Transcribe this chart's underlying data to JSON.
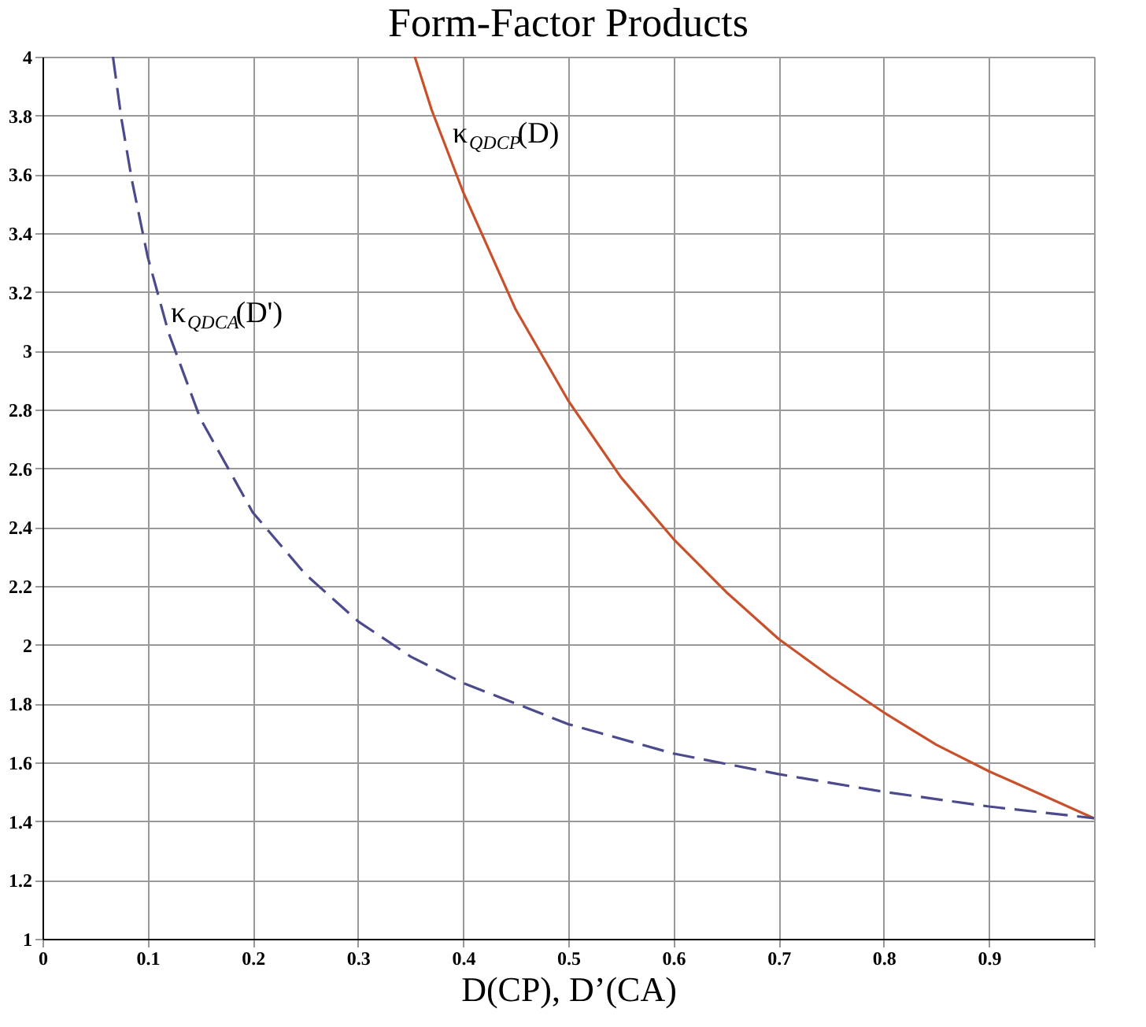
{
  "chart_data": {
    "type": "line",
    "title": "Form-Factor Products",
    "xlabel": "D(CP), D’(CA)",
    "xlim": [
      0,
      1
    ],
    "xticks": [
      0,
      0.1,
      0.2,
      0.3,
      0.4,
      0.5,
      0.6,
      0.7,
      0.8,
      0.9,
      {
        "value": 1,
        "label": null
      }
    ],
    "ylim": [
      1,
      4
    ],
    "yticks": [
      1,
      1.2,
      1.4,
      1.6,
      1.8,
      2,
      2.2,
      2.4,
      2.6,
      2.8,
      3,
      3.2,
      3.4,
      3.6,
      3.8,
      4
    ],
    "grid": true,
    "legend": false,
    "marker": "none",
    "series": [
      {
        "name": "κ$_{QDCP}$(D)",
        "color": "#c8502a",
        "line_style": "solid",
        "x": [
          0.354,
          0.37,
          0.4,
          0.45,
          0.5,
          0.55,
          0.6,
          0.65,
          0.7,
          0.75,
          0.8,
          0.85,
          0.9,
          0.95,
          1.0
        ],
        "values": [
          4.0,
          3.82,
          3.54,
          3.14,
          2.83,
          2.57,
          2.36,
          2.18,
          2.02,
          1.89,
          1.77,
          1.66,
          1.57,
          1.49,
          1.41
        ]
      },
      {
        "name": "κ$_{QDCA}$(D')",
        "color": "#4a4a8c",
        "line_style": "dashed",
        "x": [
          0.067,
          0.075,
          0.085,
          0.1,
          0.12,
          0.15,
          0.2,
          0.25,
          0.3,
          0.35,
          0.4,
          0.5,
          0.6,
          0.7,
          0.8,
          0.9,
          1.0
        ],
        "values": [
          4.0,
          3.79,
          3.58,
          3.32,
          3.06,
          2.77,
          2.45,
          2.24,
          2.08,
          1.96,
          1.87,
          1.73,
          1.63,
          1.56,
          1.5,
          1.45,
          1.41
        ]
      }
    ]
  }
}
